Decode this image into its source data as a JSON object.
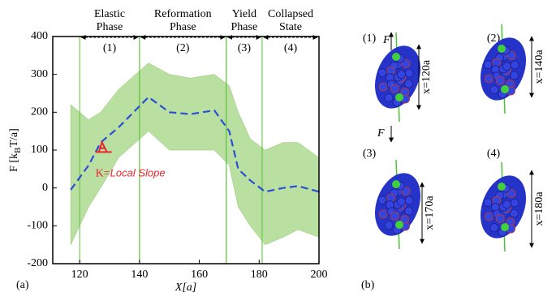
{
  "chart_data": {
    "type": "line",
    "ylabel_parts": [
      "F [k",
      "B",
      "T/a]"
    ],
    "xlabel": "X[a]",
    "panel_label": "(a)",
    "xlim": [
      111,
      200
    ],
    "ylim": [
      -200,
      400
    ],
    "xticks": [
      120,
      140,
      160,
      180,
      200
    ],
    "yticks": [
      -200,
      -100,
      0,
      100,
      200,
      300,
      400
    ],
    "x": [
      117,
      123,
      127,
      133,
      143,
      150,
      157,
      165,
      170,
      173,
      177,
      182,
      188,
      193,
      200
    ],
    "series": [
      {
        "color": "#2a4fd6",
        "values": [
          -5,
          60,
          120,
          160,
          240,
          200,
          195,
          205,
          150,
          50,
          20,
          -10,
          0,
          5,
          -10
        ]
      },
      {
        "color": "#a9d88a",
        "values": [
          220,
          180,
          200,
          260,
          330,
          300,
          290,
          300,
          270,
          200,
          130,
          100,
          120,
          120,
          80
        ]
      },
      {
        "color": "#a9d88a",
        "values": [
          -150,
          -50,
          0,
          80,
          150,
          100,
          100,
          100,
          60,
          -50,
          -100,
          -150,
          -130,
          -110,
          -130
        ]
      }
    ],
    "annotation": {
      "text_parts": [
        "K=",
        "Local Slope"
      ],
      "x": 128,
      "y": 95,
      "color": "#e8262b"
    },
    "phases": [
      {
        "lines": [
          "Elastic",
          "Phase"
        ],
        "number": "(1)",
        "start": 120,
        "end": 140
      },
      {
        "lines": [
          "Reformation",
          "Phase"
        ],
        "number": "(2)",
        "start": 140,
        "end": 169
      },
      {
        "lines": [
          "Yield",
          "Phase"
        ],
        "number": "(3)",
        "start": 169,
        "end": 181
      },
      {
        "lines": [
          "Collapsed",
          "State"
        ],
        "number": "(4)",
        "start": 181,
        "end": 200
      }
    ]
  },
  "snapshots": {
    "panel_label": "(b)",
    "force_label": "F",
    "items": [
      {
        "label": "(1)",
        "extent": "x=120a"
      },
      {
        "label": "(2)",
        "extent": "x=140a"
      },
      {
        "label": "(3)",
        "extent": "x=170a"
      },
      {
        "label": "(4)",
        "extent": "x=180a"
      }
    ]
  }
}
